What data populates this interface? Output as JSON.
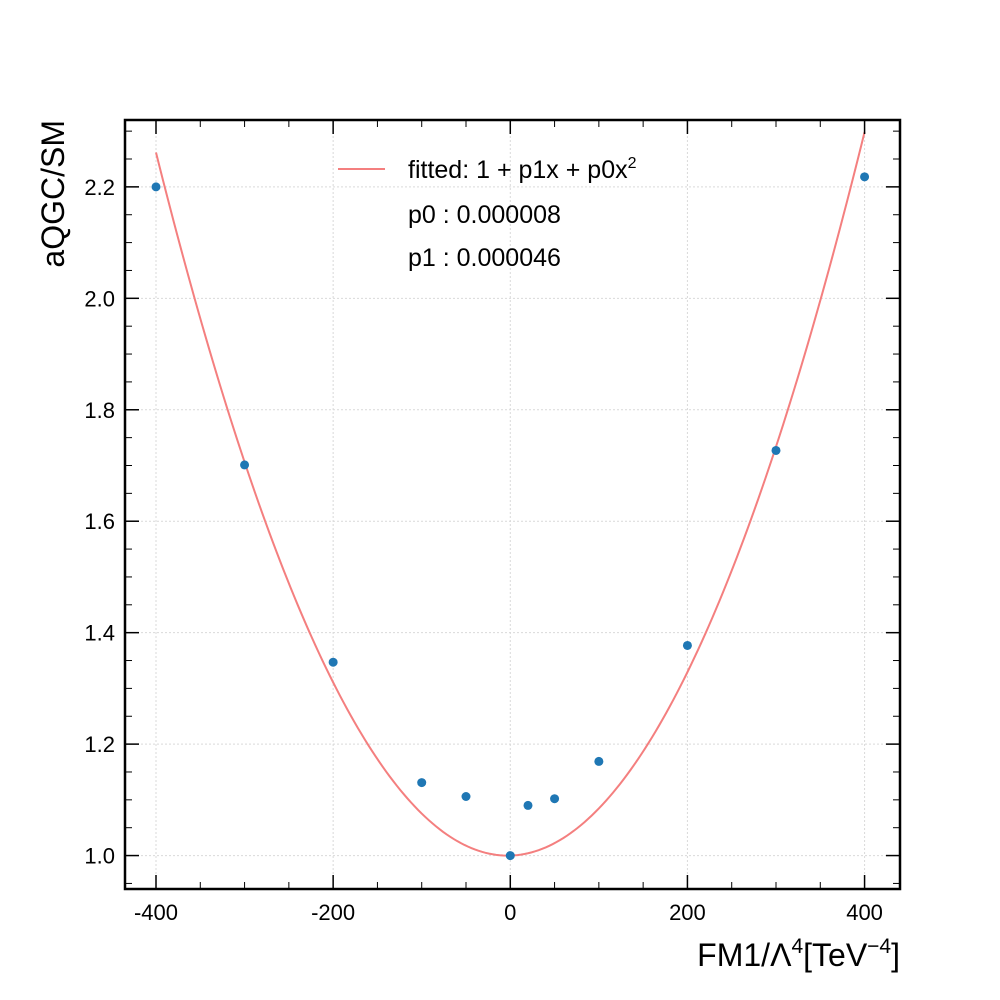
{
  "chart_data": {
    "type": "scatter",
    "xlabel": {
      "base": "FM1/Λ",
      "exp1": "4",
      "unit_open": "[TeV",
      "exp2": "−4",
      "unit_close": "]"
    },
    "ylabel": "aQGC/SM",
    "xlim": [
      -435,
      440
    ],
    "ylim": [
      0.94,
      2.32
    ],
    "xticks": [
      -400,
      -200,
      0,
      200,
      400
    ],
    "xtick_labels": [
      "-400",
      "-200",
      "0",
      "200",
      "400"
    ],
    "yticks": [
      1.0,
      1.2,
      1.4,
      1.6,
      1.8,
      2.0,
      2.2
    ],
    "ytick_labels": [
      "1.0",
      "1.2",
      "1.4",
      "1.6",
      "1.8",
      "2.0",
      "2.2"
    ],
    "grid": true,
    "legend_position": "top-center",
    "series": [
      {
        "kind": "points",
        "color": "#1f77b4",
        "x": [
          -400,
          -300,
          -200,
          -100,
          -50,
          0,
          20,
          50,
          100,
          200,
          300,
          400
        ],
        "y": [
          2.2,
          1.701,
          1.347,
          1.131,
          1.106,
          1.0,
          1.09,
          1.102,
          1.169,
          1.377,
          1.727,
          2.218
        ]
      },
      {
        "kind": "curve",
        "name_parts": {
          "text": "fitted: 1 + p1x + p0x",
          "sup": "2"
        },
        "color": "#f47f7f",
        "params": {
          "p0": 8e-06,
          "p1": 4.6e-05
        },
        "domain": [
          -400,
          400
        ]
      }
    ],
    "annotations": [
      "p0 : 0.000008",
      "p1 : 0.000046"
    ]
  }
}
